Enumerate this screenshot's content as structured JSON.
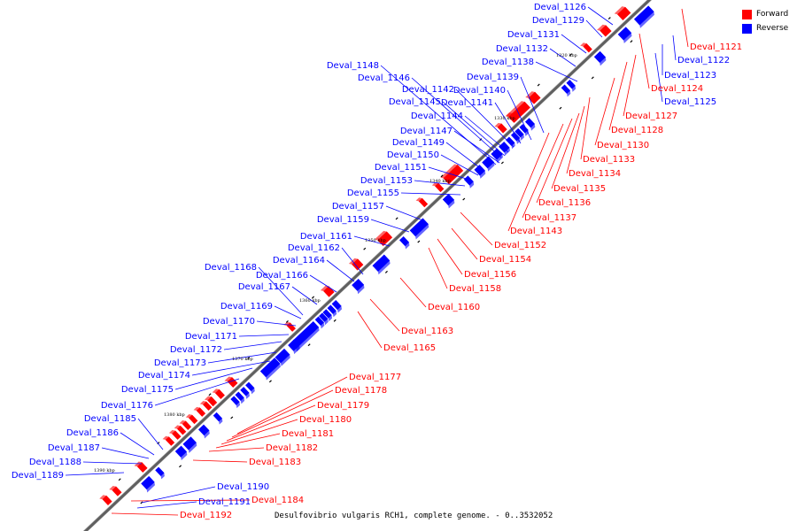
{
  "legend": {
    "forward_label": "Forward",
    "reverse_label": "Reverse",
    "forward_color": "#ff0000",
    "reverse_color": "#0000ff"
  },
  "caption": "Desulfovibrio vulgaris RCH1, complete genome. - 0..3532052",
  "ticks": [
    "1320 kbp",
    "1330 kbp",
    "1340 kbp",
    "1350 kbp",
    "1360 kbp",
    "1370 kbp",
    "1380 kbp",
    "1390 kbp"
  ],
  "reverse_genes": [
    "Deval_1126",
    "Deval_1129",
    "Deval_1131",
    "Deval_1132",
    "Deval_1138",
    "Deval_1139",
    "Deval_1140",
    "Deval_1141",
    "Deval_1142",
    "Deval_1144",
    "Deval_1145",
    "Deval_1146",
    "Deval_1147",
    "Deval_1148",
    "Deval_1149",
    "Deval_1150",
    "Deval_1151",
    "Deval_1153",
    "Deval_1155",
    "Deval_1157",
    "Deval_1159",
    "Deval_1161",
    "Deval_1162",
    "Deval_1164",
    "Deval_1166",
    "Deval_1167",
    "Deval_1168",
    "Deval_1169",
    "Deval_1170",
    "Deval_1171",
    "Deval_1172",
    "Deval_1173",
    "Deval_1174",
    "Deval_1175",
    "Deval_1176",
    "Deval_1185",
    "Deval_1186",
    "Deval_1187",
    "Deval_1188",
    "Deval_1189",
    "Deval_1190",
    "Deval_1191",
    "Deval_1122",
    "Deval_1123",
    "Deval_1125"
  ],
  "forward_genes": [
    "Deval_1121",
    "Deval_1124",
    "Deval_1127",
    "Deval_1128",
    "Deval_1130",
    "Deval_1133",
    "Deval_1134",
    "Deval_1135",
    "Deval_1136",
    "Deval_1137",
    "Deval_1143",
    "Deval_1152",
    "Deval_1154",
    "Deval_1156",
    "Deval_1158",
    "Deval_1160",
    "Deval_1163",
    "Deval_1165",
    "Deval_1177",
    "Deval_1178",
    "Deval_1179",
    "Deval_1180",
    "Deval_1181",
    "Deval_1182",
    "Deval_1183",
    "Deval_1184",
    "Deval_1192"
  ]
}
